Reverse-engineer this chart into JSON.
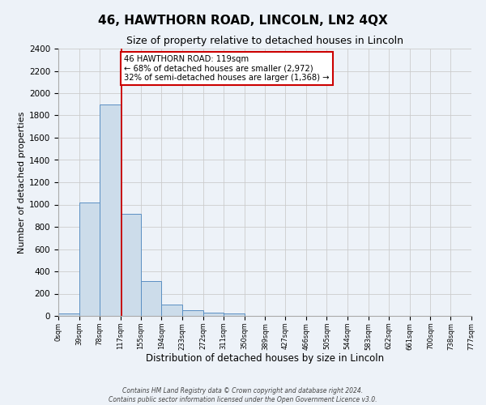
{
  "title": "46, HAWTHORN ROAD, LINCOLN, LN2 4QX",
  "subtitle": "Size of property relative to detached houses in Lincoln",
  "xlabel": "Distribution of detached houses by size in Lincoln",
  "ylabel": "Number of detached properties",
  "bin_edges": [
    0,
    39,
    78,
    117,
    155,
    194,
    233,
    272,
    311,
    350,
    389,
    427,
    466,
    505,
    544,
    583,
    622,
    661,
    700,
    738,
    777
  ],
  "bar_heights": [
    20,
    1020,
    1900,
    920,
    315,
    105,
    50,
    30,
    20,
    0,
    0,
    0,
    0,
    0,
    0,
    0,
    0,
    0,
    0,
    0
  ],
  "bar_color": "#ccdcea",
  "bar_edge_color": "#5a8fc3",
  "property_line_x": 119,
  "property_line_color": "#cc0000",
  "annotation_text": "46 HAWTHORN ROAD: 119sqm\n← 68% of detached houses are smaller (2,972)\n32% of semi-detached houses are larger (1,368) →",
  "annotation_box_color": "#ffffff",
  "annotation_box_edge_color": "#cc0000",
  "ylim": [
    0,
    2400
  ],
  "yticks": [
    0,
    200,
    400,
    600,
    800,
    1000,
    1200,
    1400,
    1600,
    1800,
    2000,
    2200,
    2400
  ],
  "grid_color": "#cccccc",
  "background_color": "#edf2f8",
  "fig_background_color": "#edf2f8",
  "tick_labels": [
    "0sqm",
    "39sqm",
    "78sqm",
    "117sqm",
    "155sqm",
    "194sqm",
    "233sqm",
    "272sqm",
    "311sqm",
    "350sqm",
    "389sqm",
    "427sqm",
    "466sqm",
    "505sqm",
    "544sqm",
    "583sqm",
    "622sqm",
    "661sqm",
    "700sqm",
    "738sqm",
    "777sqm"
  ],
  "footer_line1": "Contains HM Land Registry data © Crown copyright and database right 2024.",
  "footer_line2": "Contains public sector information licensed under the Open Government Licence v3.0."
}
